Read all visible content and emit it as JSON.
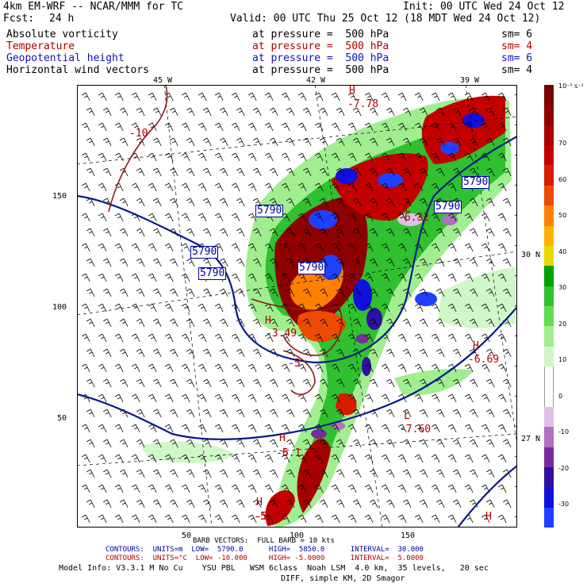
{
  "header": {
    "model": "4km EM-WRF -- NCAR/MMM for TC",
    "init": "Init: 00 UTC Wed 24 Oct 12",
    "fcst_label": "Fcst:",
    "fcst_hours": "24 h",
    "valid": "Valid: 00 UTC Thu 25 Oct 12 (18 MDT Wed 24 Oct 12)"
  },
  "fields": [
    {
      "name": "Absolute vorticity",
      "level": "at pressure =  500 hPa",
      "sm": "sm= 6",
      "color": "#000000"
    },
    {
      "name": "Temperature",
      "level": "at pressure =  500 hPa",
      "sm": "sm= 4",
      "color": "#b00000"
    },
    {
      "name": "Geopotential height",
      "level": "at pressure =  500 hPa",
      "sm": "sm= 6",
      "color": "#1010c0"
    },
    {
      "name": "Horizontal wind vectors",
      "level": "at pressure =  500 hPa",
      "sm": "sm= 4",
      "color": "#000000"
    }
  ],
  "map": {
    "lon_labels": [
      "45 W",
      "42 W",
      "39 W"
    ],
    "lat_labels": [
      "30 N",
      "27 N"
    ],
    "y_ticks": [
      "150",
      "100",
      "50"
    ],
    "x_ticks": [
      "50",
      "100",
      "150"
    ],
    "height_labels": [
      "5790",
      "5790",
      "5790",
      "5790",
      "5790",
      "5790"
    ],
    "temp_labels": [
      "-10",
      "-5",
      "-5",
      "-5"
    ],
    "centers": [
      {
        "symbol": "H",
        "value": "-7.78"
      },
      {
        "symbol": "L",
        "value": "-6.32"
      },
      {
        "symbol": "H",
        "value": "-3.49"
      },
      {
        "symbol": "H",
        "value": "-6.69"
      },
      {
        "symbol": "L",
        "value": "-7.60"
      },
      {
        "symbol": "H",
        "value": "-6.1"
      },
      {
        "symbol": "H",
        "value": "-5.32"
      },
      {
        "symbol": "H",
        "value": ""
      }
    ]
  },
  "colorbar": {
    "unit": "10⁻⁵ s⁻¹",
    "labels": [
      "70",
      "60",
      "50",
      "40",
      "30",
      "20",
      "10",
      "0",
      "-10",
      "-20",
      "-30"
    ],
    "colors": [
      "#7a0000",
      "#8f0000",
      "#a80000",
      "#c20000",
      "#d81c00",
      "#ee4a00",
      "#ff8000",
      "#ffb000",
      "#e8d800",
      "#00a000",
      "#30c030",
      "#60dd50",
      "#a0ee90",
      "#d0f7c8",
      "#ffffff",
      "#ffffff",
      "#e0c0e8",
      "#b070c0",
      "#7a2a9a",
      "#3010a0",
      "#1010e0",
      "#2040ff"
    ]
  },
  "footer": {
    "barb_line": "BARB VECTORS:  FULL BARB = 10 kts",
    "contour1": "CONTOURS:  UNITS=m  LOW=  5790.0      HIGH=  5850.0      INTERVAL=  30.000",
    "contour2": "CONTOURS:  UNITS=°C  LOW= -10.000     HIGH= -5.0000      INTERVAL=  5.0000",
    "model_info": "Model Info: V3.3.1 M No Cu    YSU PBL   WSM 6class  Noah LSM  4.0 km,  35 levels,   20 sec",
    "diff_line": "DIFF, simple KM, 2D Smagor"
  }
}
